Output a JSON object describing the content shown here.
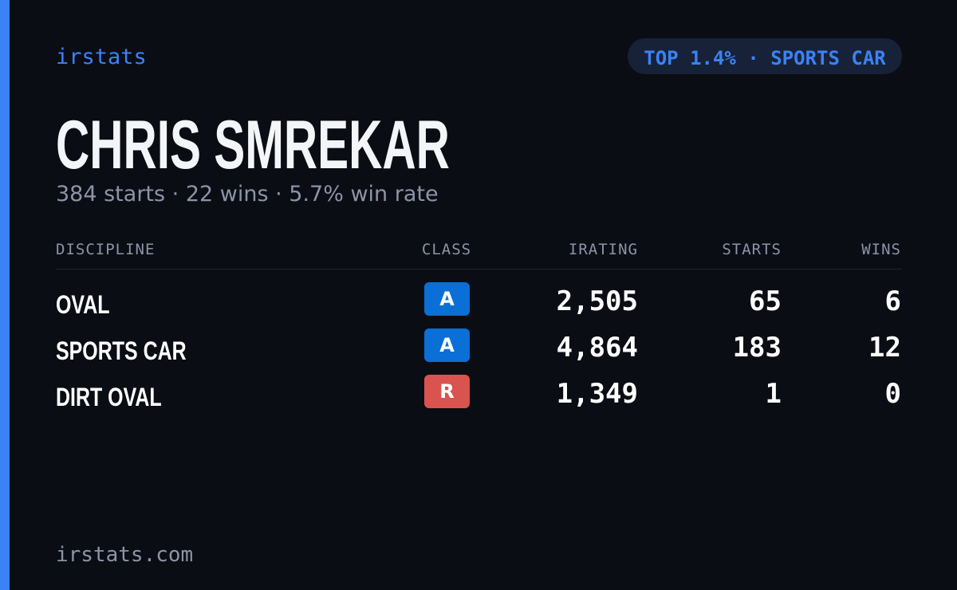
{
  "header": {
    "brand": "irstats",
    "badge": "TOP 1.4% · SPORTS CAR"
  },
  "profile": {
    "name": "CHRIS SMREKAR",
    "summary": "384 starts · 22 wins · 5.7% win rate"
  },
  "table": {
    "columns": [
      "DISCIPLINE",
      "CLASS",
      "IRATING",
      "STARTS",
      "WINS"
    ],
    "rows": [
      {
        "discipline": "OVAL",
        "class": "A",
        "class_color": "#0a6fd6",
        "irating": "2,505",
        "starts": "65",
        "wins": "6"
      },
      {
        "discipline": "SPORTS CAR",
        "class": "A",
        "class_color": "#0a6fd6",
        "irating": "4,864",
        "starts": "183",
        "wins": "12"
      },
      {
        "discipline": "DIRT OVAL",
        "class": "R",
        "class_color": "#d9534f",
        "irating": "1,349",
        "starts": "1",
        "wins": "0"
      }
    ]
  },
  "footer": {
    "site": "irstats.com"
  }
}
